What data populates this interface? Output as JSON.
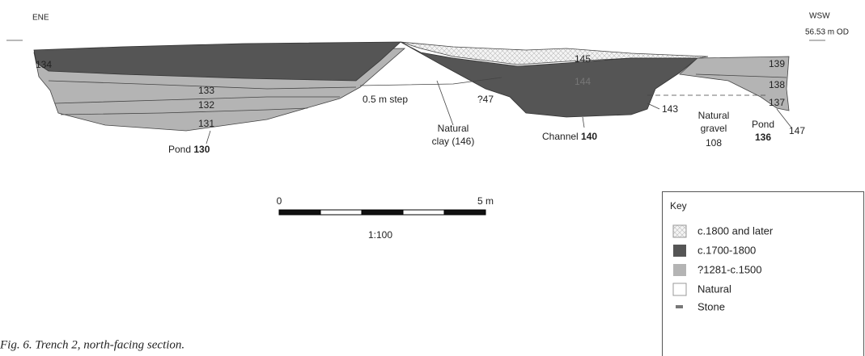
{
  "header": {
    "left": "ENE",
    "right": "WSW",
    "datum": "56.53 m OD"
  },
  "layers": [
    "134",
    "133",
    "132",
    "131",
    "145",
    "144",
    "?47",
    "139",
    "138",
    "137",
    "143",
    "147"
  ],
  "features": {
    "pond_130": {
      "name": "Pond",
      "number": "130"
    },
    "step": "0.5 m step",
    "clay": [
      "Natural",
      "clay (146)"
    ],
    "channel": {
      "name": "Channel",
      "number": "140"
    },
    "gravel": [
      "Natural",
      "gravel",
      "108"
    ],
    "pond_136": {
      "name": "Pond",
      "number": "136"
    }
  },
  "scale": {
    "start": "0",
    "end": "5 m",
    "ratio": "1:100"
  },
  "key": {
    "title": "Key",
    "items": [
      "c.1800 and later",
      "c.1700-1800",
      "?1281-c.1500",
      "Natural",
      "Stone"
    ]
  },
  "caption": "Fig. 6. Trench 2, north-facing section."
}
